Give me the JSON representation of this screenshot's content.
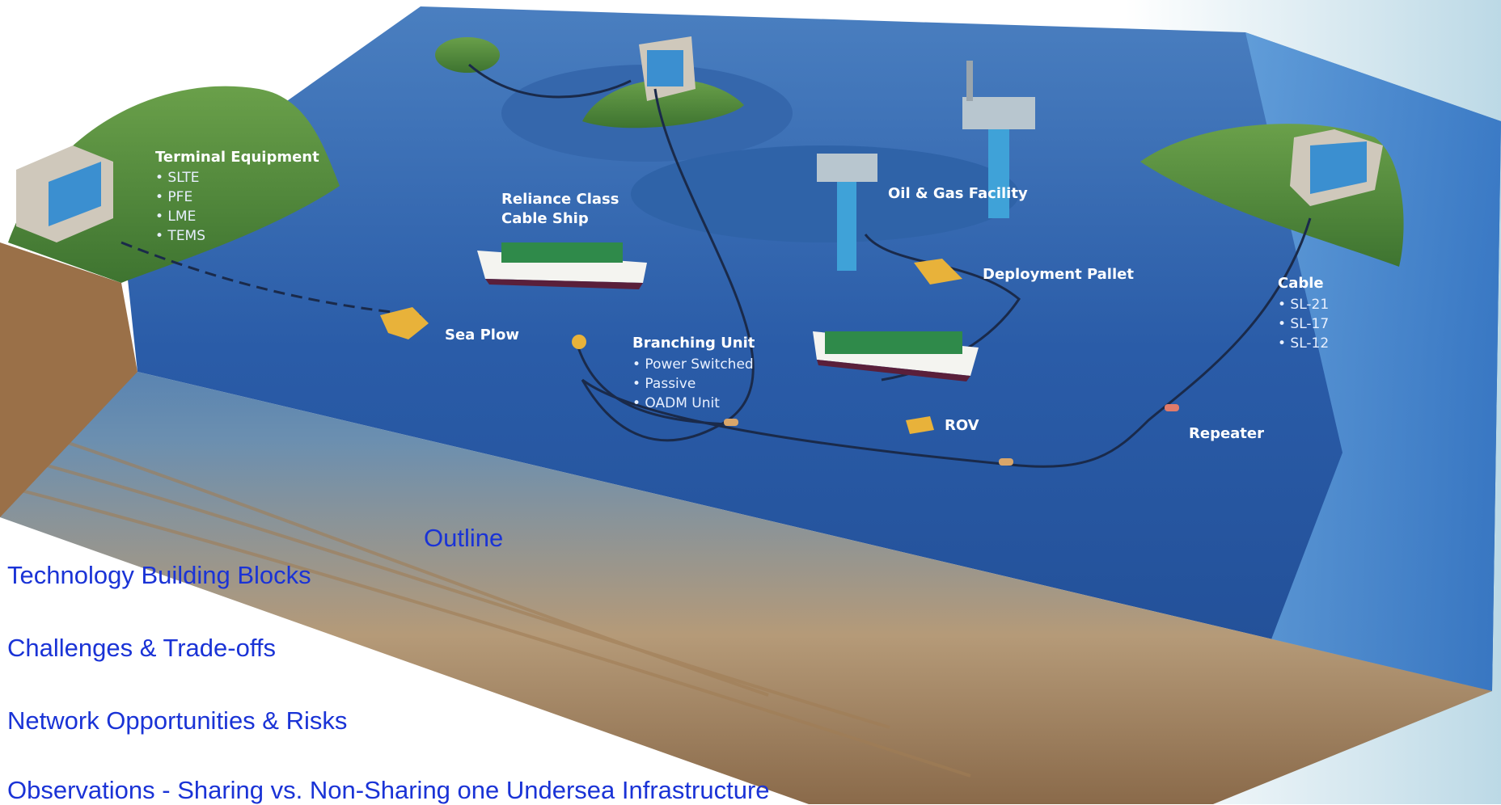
{
  "diagram": {
    "terminal_equipment": {
      "title": "Terminal Equipment",
      "items": [
        "• SLTE",
        "• PFE",
        "• LME",
        "• TEMS"
      ]
    },
    "cable_ship_line1": "Reliance Class",
    "cable_ship_line2": "Cable Ship",
    "oil_gas": "Oil & Gas Facility",
    "deployment_pallet": "Deployment Pallet",
    "cable": {
      "title": "Cable",
      "items": [
        "• SL-21",
        "• SL-17",
        "• SL-12"
      ]
    },
    "sea_plow": "Sea Plow",
    "branching_unit": {
      "title": "Branching Unit",
      "items": [
        "• Power Switched",
        "• Passive",
        "• OADM Unit"
      ]
    },
    "rov": "ROV",
    "repeater": "Repeater"
  },
  "outline": {
    "title": "Outline",
    "items": [
      "Technology Building Blocks",
      "Challenges & Trade-offs",
      "Network Opportunities & Risks",
      "Observations - Sharing vs. Non-Sharing one Undersea Infrastructure"
    ]
  },
  "colors": {
    "sea": "#2a5ca8",
    "land": "#4f8a3a",
    "text_blue": "#1a33d6"
  }
}
